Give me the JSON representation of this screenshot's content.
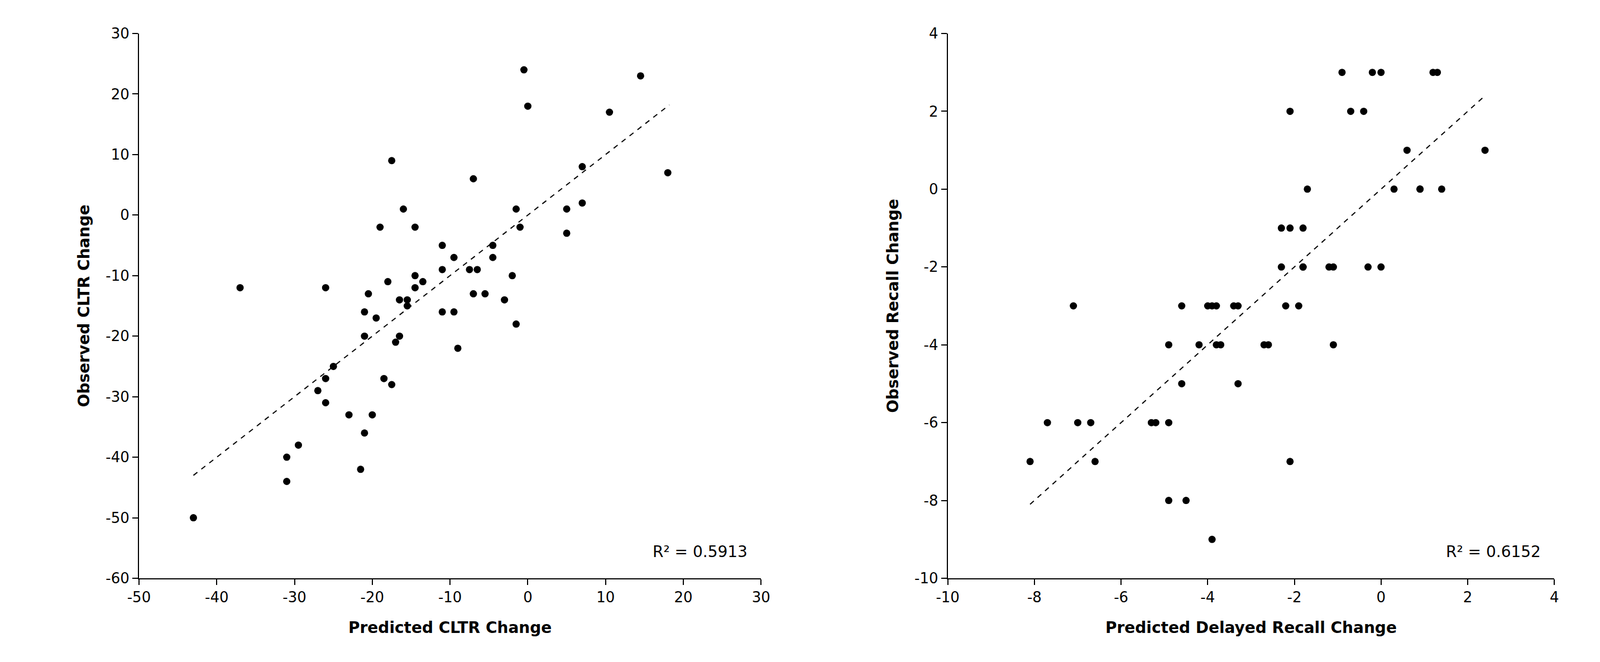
{
  "chart_data": [
    {
      "type": "scatter",
      "x_label": "Predicted CLTR Change",
      "y_label": "Observed CLTR Change",
      "annotation": "R² = 0.5913",
      "xlim": [
        -50,
        30
      ],
      "xticks": [
        -50,
        -40,
        -30,
        -20,
        -10,
        0,
        10,
        20,
        30
      ],
      "ylim": [
        -60,
        30
      ],
      "yticks": [
        -60,
        -50,
        -40,
        -30,
        -20,
        -10,
        0,
        10,
        20,
        30
      ],
      "grid": false,
      "series": [
        {
          "type": "scatter",
          "marker": "circle",
          "color": "#000000",
          "x": [
            -43,
            -37,
            -31,
            -31,
            -29.5,
            -27,
            -26,
            -26,
            -26,
            -25,
            -23,
            -21,
            -21,
            -20.5,
            -21,
            -20,
            -21.5,
            -19.5,
            -19,
            -18.5,
            -18,
            -17.5,
            -17.5,
            -17,
            -16.5,
            -16.5,
            -16,
            -15.5,
            -15.5,
            -14.5,
            -14.5,
            -14.5,
            -13.5,
            -11,
            -11,
            -11,
            -9.5,
            -9.5,
            -9,
            -7.5,
            -7,
            -7,
            -6.5,
            -5.5,
            -4.5,
            -4.5,
            -3,
            -2,
            -1.5,
            -1.5,
            -1,
            -0.5,
            0,
            5,
            5,
            7,
            7,
            10.5,
            14.5,
            18
          ],
          "values": [
            -50,
            -12,
            -40,
            -44,
            -38,
            -29,
            -12,
            -27,
            -31,
            -25,
            -33,
            -16,
            -20,
            -13,
            -36,
            -33,
            -42,
            -17,
            -2,
            -27,
            -11,
            -28,
            9,
            -21,
            -14,
            -20,
            1,
            -14,
            -15,
            -2,
            -10,
            -12,
            -11,
            -5,
            -9,
            -16,
            -16,
            -7,
            -22,
            -9,
            -13,
            6,
            -9,
            -13,
            -5,
            -7,
            -14,
            -10,
            -18,
            1,
            -2,
            24,
            18,
            1,
            -3,
            8,
            2,
            17,
            23,
            7
          ]
        },
        {
          "type": "line",
          "line_style": "dash",
          "color": "#000000",
          "x": [
            -43,
            18.2
          ],
          "values": [
            -43,
            18.2
          ]
        }
      ]
    },
    {
      "type": "scatter",
      "x_label": "Predicted Delayed Recall Change",
      "y_label": "Observed Recall Change",
      "annotation": "R² = 0.6152",
      "xlim": [
        -10,
        4
      ],
      "xticks": [
        -10,
        -8,
        -6,
        -4,
        -2,
        0,
        2,
        4
      ],
      "ylim": [
        -10,
        4
      ],
      "yticks": [
        -10,
        -8,
        -6,
        -4,
        -2,
        0,
        2,
        4
      ],
      "grid": false,
      "series": [
        {
          "type": "scatter",
          "marker": "circle",
          "color": "#000000",
          "x": [
            -8.1,
            -7.7,
            -7.1,
            -7,
            -6.7,
            -6.6,
            -5.3,
            -5.2,
            -4.9,
            -4.9,
            -4.9,
            -4.6,
            -4.6,
            -4.5,
            -4.2,
            -4,
            -3.9,
            -3.8,
            -3.8,
            -3.9,
            -3.7,
            -3.4,
            -3.3,
            -3.3,
            -2.7,
            -2.6,
            -2.3,
            -2.3,
            -2.2,
            -2.1,
            -2.1,
            -2.1,
            -1.9,
            -1.8,
            -1.8,
            -1.8,
            -1.7,
            -1.2,
            -1.1,
            -1.1,
            -0.9,
            -0.7,
            -0.4,
            -0.3,
            -0.2,
            0,
            0,
            0.3,
            0.6,
            0.9,
            0.9,
            1.2,
            1.3,
            1.4,
            2.4
          ],
          "values": [
            -7,
            -6,
            -3,
            -6,
            -6,
            -7,
            -6,
            -6,
            -4,
            -6,
            -8,
            -3,
            -5,
            -8,
            -4,
            -3,
            -3,
            -4,
            -3,
            -9,
            -4,
            -3,
            -3,
            -5,
            -4,
            -4,
            -1,
            -2,
            -3,
            2,
            -1,
            -7,
            -3,
            -1,
            -2,
            -2,
            0,
            -2,
            -2,
            -4,
            3,
            2,
            2,
            -2,
            3,
            3,
            -2,
            0,
            1,
            0,
            0,
            3,
            3,
            0,
            1
          ]
        },
        {
          "type": "line",
          "line_style": "dash",
          "color": "#000000",
          "x": [
            -8.1,
            2.4
          ],
          "values": [
            -8.1,
            2.4
          ]
        }
      ]
    }
  ]
}
